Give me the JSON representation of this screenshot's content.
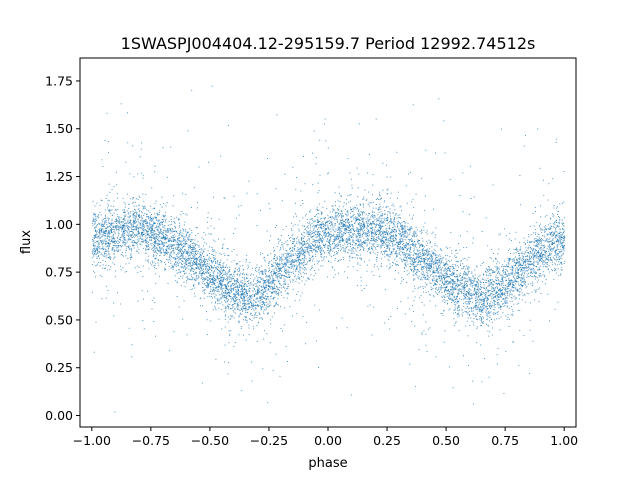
{
  "chart_data": {
    "type": "scatter",
    "title": "1SWASPJ004404.12-295159.7 Period 12992.74512s",
    "xlabel": "phase",
    "ylabel": "flux",
    "xlim": [
      -1.05,
      1.05
    ],
    "ylim": [
      -0.06,
      1.87
    ],
    "grid": false,
    "marker_color": "#1f77b4",
    "x_ticks": [
      -1.0,
      -0.75,
      -0.5,
      -0.25,
      0.0,
      0.25,
      0.5,
      0.75,
      1.0
    ],
    "x_tick_labels": [
      "−1.00",
      "−0.75",
      "−0.50",
      "−0.25",
      "0.00",
      "0.25",
      "0.50",
      "0.75",
      "1.00"
    ],
    "y_ticks": [
      0.0,
      0.25,
      0.5,
      0.75,
      1.0,
      1.25,
      1.5,
      1.75
    ],
    "y_tick_labels": [
      "0.00",
      "0.25",
      "0.50",
      "0.75",
      "1.00",
      "1.25",
      "1.50",
      "1.75"
    ],
    "x_range": [
      -1.0,
      1.0
    ],
    "light_curve_profile": [
      {
        "phase": -1.0,
        "flux": 0.92
      },
      {
        "phase": -0.9,
        "flux": 0.96
      },
      {
        "phase": -0.8,
        "flux": 0.98
      },
      {
        "phase": -0.7,
        "flux": 0.93
      },
      {
        "phase": -0.6,
        "flux": 0.85
      },
      {
        "phase": -0.5,
        "flux": 0.74
      },
      {
        "phase": -0.4,
        "flux": 0.65
      },
      {
        "phase": -0.32,
        "flux": 0.62
      },
      {
        "phase": -0.25,
        "flux": 0.7
      },
      {
        "phase": -0.15,
        "flux": 0.82
      },
      {
        "phase": -0.05,
        "flux": 0.93
      },
      {
        "phase": 0.05,
        "flux": 0.97
      },
      {
        "phase": 0.15,
        "flux": 0.98
      },
      {
        "phase": 0.25,
        "flux": 0.95
      },
      {
        "phase": 0.35,
        "flux": 0.87
      },
      {
        "phase": 0.45,
        "flux": 0.76
      },
      {
        "phase": 0.55,
        "flux": 0.67
      },
      {
        "phase": 0.65,
        "flux": 0.62
      },
      {
        "phase": 0.75,
        "flux": 0.68
      },
      {
        "phase": 0.85,
        "flux": 0.8
      },
      {
        "phase": 0.95,
        "flux": 0.9
      },
      {
        "phase": 1.0,
        "flux": 0.93
      }
    ]
  }
}
